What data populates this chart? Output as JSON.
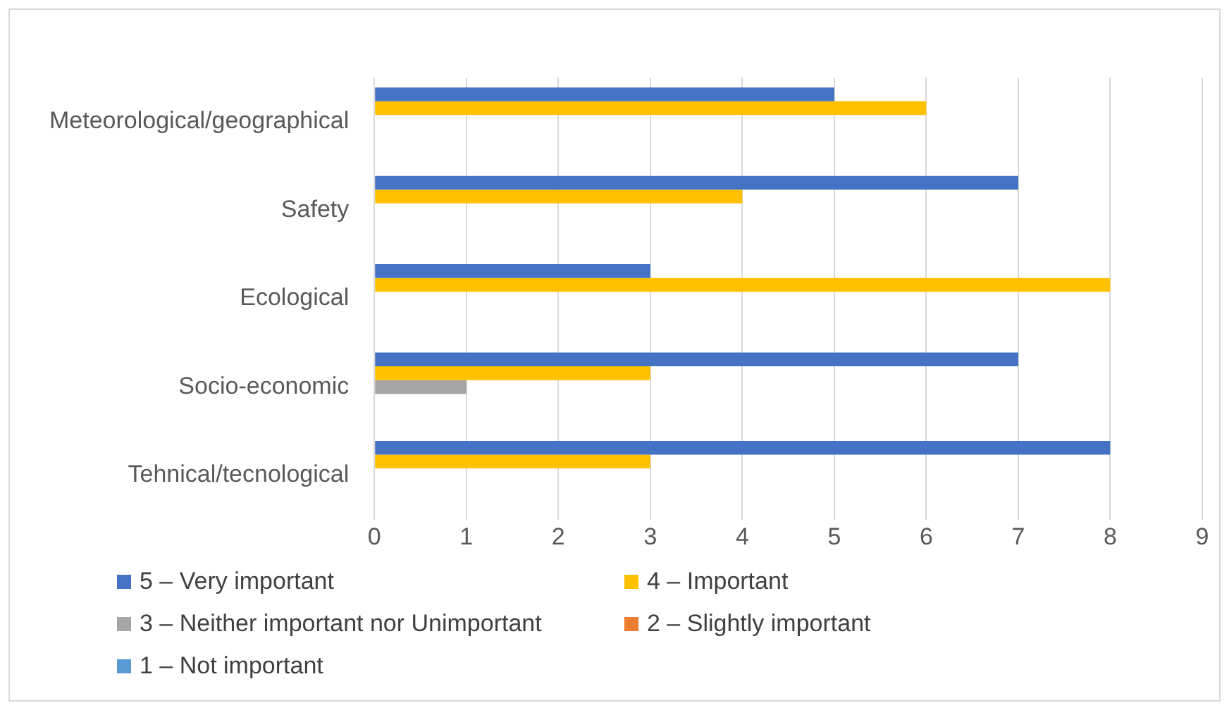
{
  "chart_data": {
    "type": "bar",
    "orientation": "horizontal",
    "categories": [
      "Meteorological/geographical",
      "Safety",
      "Ecological",
      "Socio-economic",
      "Tehnical/tecnological"
    ],
    "series": [
      {
        "name": "5 – Very important",
        "color": "#4472c4",
        "values": [
          5,
          7,
          3,
          7,
          8
        ]
      },
      {
        "name": "4 – Important",
        "color": "#ffc000",
        "values": [
          6,
          4,
          8,
          3,
          3
        ]
      },
      {
        "name": "3 – Neither important nor Unimportant",
        "color": "#a5a5a5",
        "values": [
          0,
          0,
          0,
          1,
          0
        ]
      },
      {
        "name": "2 – Slightly important",
        "color": "#ed7d31",
        "values": [
          0,
          0,
          0,
          0,
          0
        ]
      },
      {
        "name": "1 – Not important",
        "color": "#5b9bd5",
        "values": [
          0,
          0,
          0,
          0,
          0
        ]
      }
    ],
    "xlim": [
      0,
      9
    ],
    "xticks": [
      0,
      1,
      2,
      3,
      4,
      5,
      6,
      7,
      8,
      9
    ],
    "grid": "x",
    "legend": "bottom"
  }
}
